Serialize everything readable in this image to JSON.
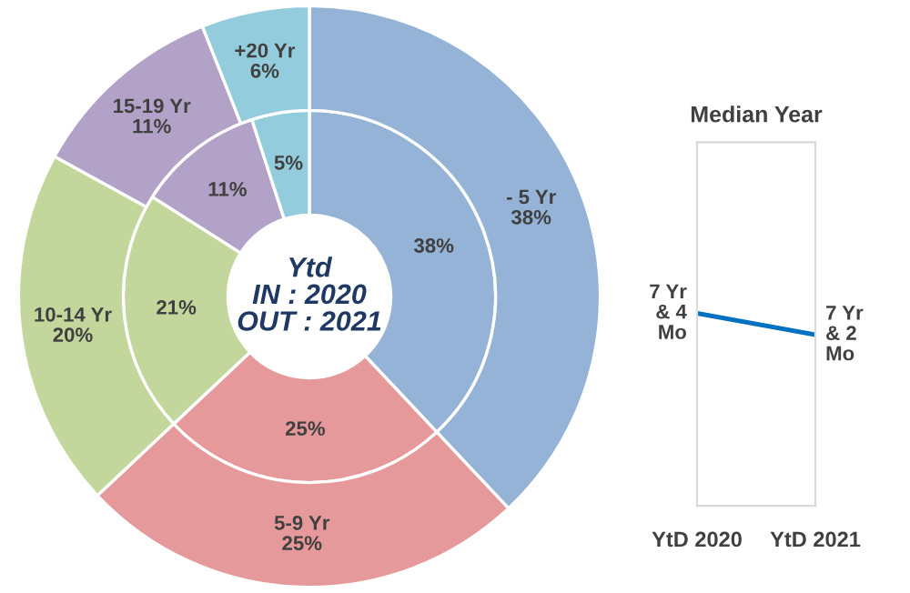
{
  "chart_data": [
    {
      "type": "donut",
      "categories": [
        "- 5 Yr",
        "5-9 Yr",
        "10-14 Yr",
        "15-19 Yr",
        "+20 Yr"
      ],
      "colors": [
        "#95b3d7",
        "#e6999a",
        "#c3d69b",
        "#b3a2c7",
        "#93cddd"
      ],
      "series": [
        {
          "values": [
            38,
            25,
            21,
            11,
            5
          ],
          "value_labels": [
            "38%",
            "25%",
            "21%",
            "11%",
            "5%"
          ]
        },
        {
          "values": [
            38,
            25,
            20,
            11,
            6
          ],
          "value_labels": [
            "38%",
            "25%",
            "20%",
            "11%",
            "6%"
          ]
        }
      ],
      "annotations": [
        "Ytd",
        "IN : 2020",
        "OUT : 2021"
      ]
    },
    {
      "type": "line",
      "title": "Median Year",
      "categories": [
        "YtD 2020",
        "YtD 2021"
      ],
      "series": [
        {
          "color": "#0070c0",
          "values": [
            7.33,
            7.17
          ],
          "value_labels": [
            "7 Yr & 4 Mo",
            "7 Yr & 2 Mo"
          ]
        }
      ],
      "tick_labels": "x"
    }
  ]
}
